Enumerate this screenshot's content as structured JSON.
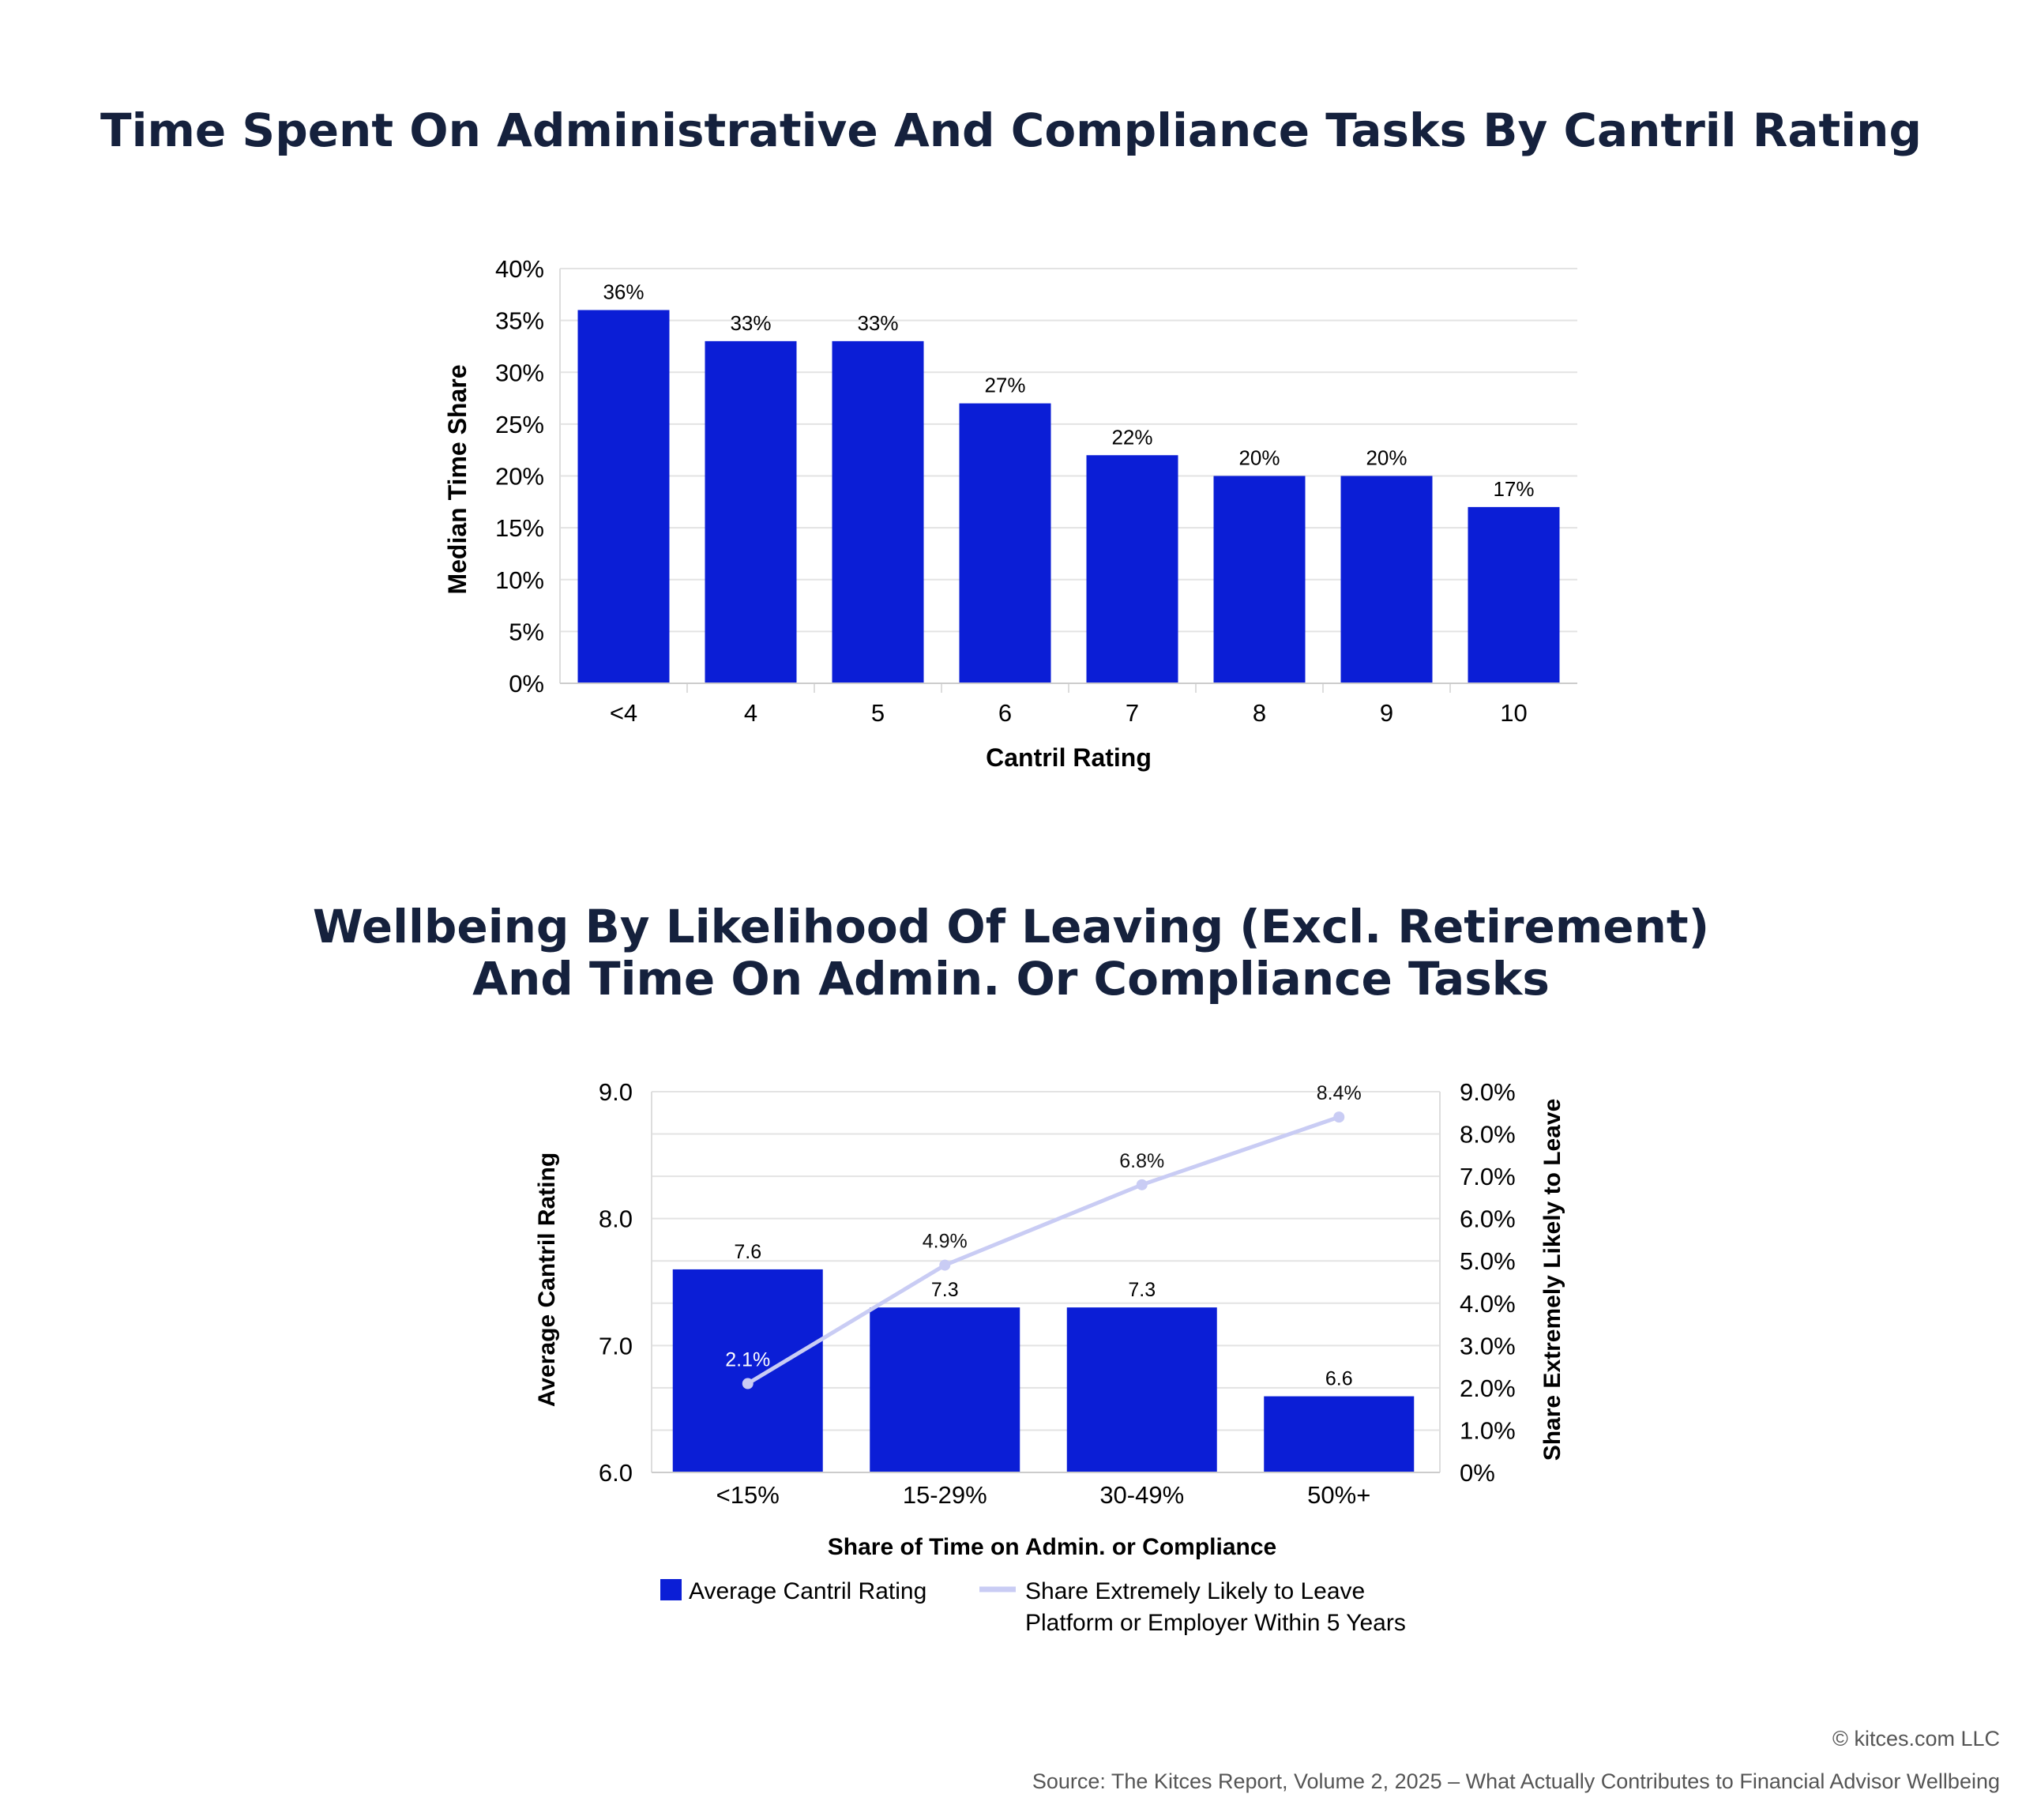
{
  "colors": {
    "bar": "#0b1ed6",
    "line": "#c9ccf4",
    "grid": "#e3e3e3",
    "title": "#15213d"
  },
  "chart_data": [
    {
      "type": "bar",
      "title": "Time Spent On Administrative And Compliance Tasks By Cantril Rating",
      "xlabel": "Cantril Rating",
      "ylabel": "Median Time Share",
      "categories": [
        "<4",
        "4",
        "5",
        "6",
        "7",
        "8",
        "9",
        "10"
      ],
      "values": [
        36,
        33,
        33,
        27,
        22,
        20,
        20,
        17
      ],
      "data_labels": [
        "36%",
        "33%",
        "33%",
        "27%",
        "22%",
        "20%",
        "20%",
        "17%"
      ],
      "ylim": [
        0,
        40
      ],
      "yticks": [
        "0%",
        "5%",
        "10%",
        "15%",
        "20%",
        "25%",
        "30%",
        "35%",
        "40%"
      ],
      "grid": true
    },
    {
      "type": "bar+line",
      "title": "Wellbeing By Likelihood Of Leaving (Excl. Retirement) And Time On Admin. Or Compliance Tasks",
      "title_lines": [
        "Wellbeing By Likelihood Of Leaving (Excl. Retirement)",
        "And Time On Admin. Or Compliance Tasks"
      ],
      "xlabel": "Share of Time on Admin. or Compliance",
      "ylabel": "Average Cantril Rating",
      "ylabel_right": "Share Extremely Likely to Leave",
      "categories": [
        "<15%",
        "15-29%",
        "30-49%",
        "50%+"
      ],
      "series": [
        {
          "name": "Average Cantril Rating",
          "type": "bar",
          "axis": "left",
          "values": [
            7.6,
            7.3,
            7.3,
            6.6
          ],
          "data_labels": [
            "7.6",
            "7.3",
            "7.3",
            "6.6"
          ]
        },
        {
          "name": "Share Extremely Likely to Leave Platform or Employer Within 5 Years",
          "type": "line",
          "axis": "right",
          "values": [
            2.1,
            4.9,
            6.8,
            8.4
          ],
          "data_labels": [
            "2.1%",
            "4.9%",
            "6.8%",
            "8.4%"
          ]
        }
      ],
      "legend_lines": [
        "Share Extremely Likely to Leave",
        "Platform or Employer Within 5 Years"
      ],
      "ylim": [
        6.0,
        9.0
      ],
      "yticks": [
        "6.0",
        "7.0",
        "8.0",
        "9.0"
      ],
      "ylim_right": [
        0,
        9
      ],
      "yticks_right": [
        "0%",
        "1.0%",
        "2.0%",
        "3.0%",
        "4.0%",
        "5.0%",
        "6.0%",
        "7.0%",
        "8.0%",
        "9.0%"
      ],
      "legend": "bottom",
      "grid": true
    }
  ],
  "footer": {
    "copyright": "© kitces.com LLC",
    "source": "Source: The Kitces Report, Volume 2, 2025 – What Actually Contributes to Financial Advisor Wellbeing"
  }
}
